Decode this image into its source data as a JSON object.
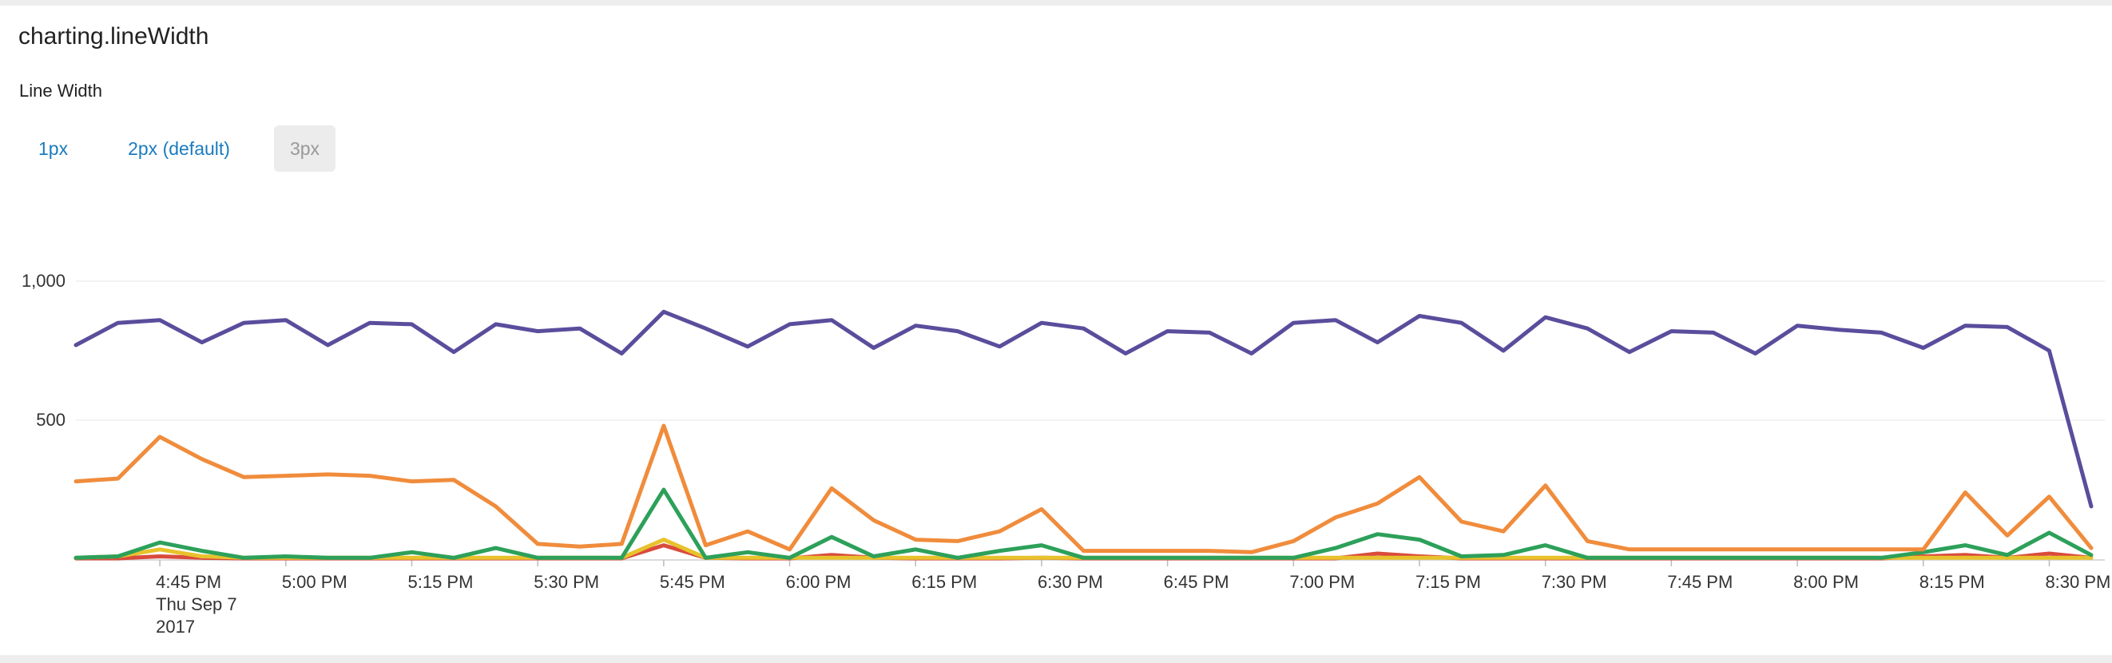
{
  "panel": {
    "title": "charting.lineWidth",
    "subtitle": "Line Width",
    "options": [
      {
        "label": "1px",
        "active": false
      },
      {
        "label": "2px (default)",
        "active": false
      },
      {
        "label": "3px",
        "active": true
      }
    ]
  },
  "chart_data": {
    "type": "line",
    "title": "",
    "xlabel": "",
    "ylabel": "",
    "ylim": [
      0,
      1000
    ],
    "y_ticks": [
      {
        "value": 500,
        "label": "500"
      },
      {
        "value": 1000,
        "label": "1,000"
      }
    ],
    "x_ticks": [
      {
        "label": "4:45 PM",
        "extra": [
          "Thu Sep 7",
          "2017"
        ]
      },
      {
        "label": "5:00 PM"
      },
      {
        "label": "5:15 PM"
      },
      {
        "label": "5:30 PM"
      },
      {
        "label": "5:45 PM"
      },
      {
        "label": "6:00 PM"
      },
      {
        "label": "6:15 PM"
      },
      {
        "label": "6:30 PM"
      },
      {
        "label": "6:45 PM"
      },
      {
        "label": "7:00 PM"
      },
      {
        "label": "7:15 PM"
      },
      {
        "label": "7:30 PM"
      },
      {
        "label": "7:45 PM"
      },
      {
        "label": "8:00 PM"
      },
      {
        "label": "8:15 PM"
      },
      {
        "label": "8:30 PM"
      }
    ],
    "grid": true,
    "legend": "none",
    "x_start_time": "4:35 PM",
    "x_step_minutes": 5,
    "series": [
      {
        "color": "#5a4d9c",
        "values": [
          770,
          850,
          860,
          780,
          850,
          860,
          770,
          850,
          845,
          745,
          845,
          820,
          830,
          740,
          890,
          830,
          765,
          845,
          860,
          760,
          840,
          820,
          765,
          850,
          830,
          740,
          820,
          815,
          740,
          850,
          860,
          780,
          875,
          850,
          750,
          870,
          830,
          745,
          820,
          815,
          740,
          840,
          825,
          815,
          760,
          840,
          835,
          750,
          190
        ]
      },
      {
        "color": "#f08c3c",
        "values": [
          280,
          290,
          440,
          360,
          295,
          300,
          305,
          300,
          280,
          285,
          190,
          55,
          45,
          55,
          480,
          50,
          100,
          35,
          255,
          140,
          70,
          65,
          100,
          180,
          30,
          30,
          30,
          30,
          25,
          65,
          150,
          200,
          295,
          135,
          100,
          265,
          65,
          35,
          35,
          35,
          35,
          35,
          35,
          35,
          35,
          240,
          85,
          225,
          40
        ]
      },
      {
        "color": "#2da05a",
        "values": [
          5,
          10,
          60,
          30,
          5,
          10,
          5,
          5,
          25,
          5,
          40,
          5,
          5,
          5,
          250,
          5,
          25,
          5,
          80,
          10,
          35,
          5,
          30,
          50,
          5,
          5,
          5,
          5,
          5,
          5,
          40,
          90,
          70,
          10,
          15,
          50,
          5,
          5,
          5,
          5,
          5,
          5,
          5,
          5,
          25,
          50,
          15,
          95,
          15
        ]
      },
      {
        "color": "#e8c22c",
        "values": [
          5,
          10,
          35,
          10,
          5,
          5,
          5,
          5,
          5,
          5,
          5,
          5,
          5,
          5,
          70,
          5,
          5,
          5,
          5,
          5,
          5,
          5,
          5,
          5,
          5,
          5,
          5,
          5,
          5,
          5,
          5,
          5,
          5,
          5,
          5,
          5,
          5,
          5,
          5,
          5,
          5,
          5,
          5,
          5,
          5,
          5,
          5,
          5,
          5
        ]
      },
      {
        "color": "#d94b3c",
        "values": [
          3,
          3,
          10,
          5,
          3,
          3,
          3,
          3,
          3,
          3,
          3,
          3,
          3,
          3,
          50,
          5,
          3,
          3,
          15,
          5,
          3,
          3,
          3,
          5,
          3,
          3,
          3,
          3,
          3,
          3,
          3,
          20,
          10,
          3,
          3,
          3,
          3,
          3,
          3,
          3,
          3,
          3,
          3,
          3,
          10,
          15,
          5,
          20,
          5
        ]
      }
    ]
  }
}
